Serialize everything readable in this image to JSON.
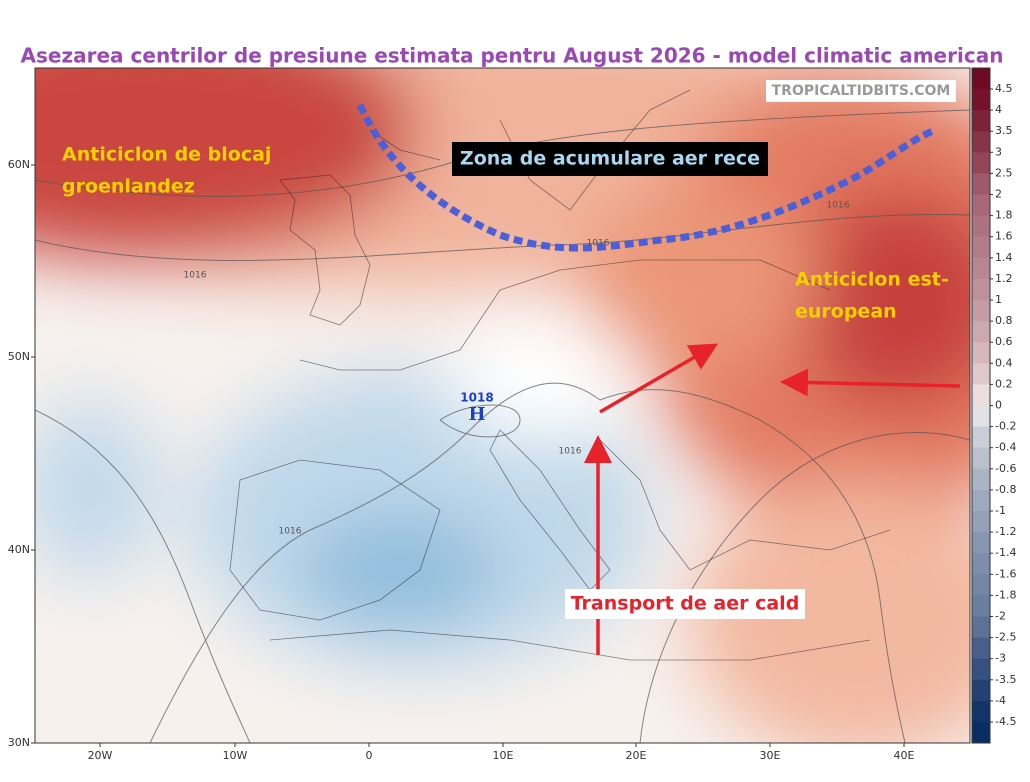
{
  "header": {
    "title": "Asezarea centrilor de presiune estimata pentru August 2026 - model climatic american"
  },
  "watermark": "TROPICALTIDBITS.COM",
  "labels": {
    "greenland": [
      "Anticiclon de blocaj",
      "groenlandez"
    ],
    "cold_zone": "Zona de acumulare aer rece",
    "east_europe": [
      "Anticiclon est-",
      "european"
    ],
    "warm_transport": "Transport de aer cald"
  },
  "isobars": [
    "1016",
    "1016",
    "1016",
    "1016",
    "1016"
  ],
  "high": {
    "pressure": "1018",
    "letter": "H"
  },
  "lat_labels": [
    "60N",
    "50N",
    "40N",
    "30N"
  ],
  "lon_labels": [
    "20W",
    "10W",
    "0",
    "10E",
    "20E",
    "30E",
    "40E"
  ],
  "colorbar": [
    4.5,
    4,
    3.5,
    3,
    2.5,
    2,
    1.8,
    1.6,
    1.4,
    1.2,
    1,
    0.8,
    0.6,
    0.4,
    0.2,
    0,
    -0.2,
    -0.4,
    -0.6,
    -0.8,
    -1,
    -1.2,
    -1.4,
    -1.6,
    -1.8,
    -2,
    -2.5,
    -3,
    -3.5,
    -4,
    -4.5
  ]
}
